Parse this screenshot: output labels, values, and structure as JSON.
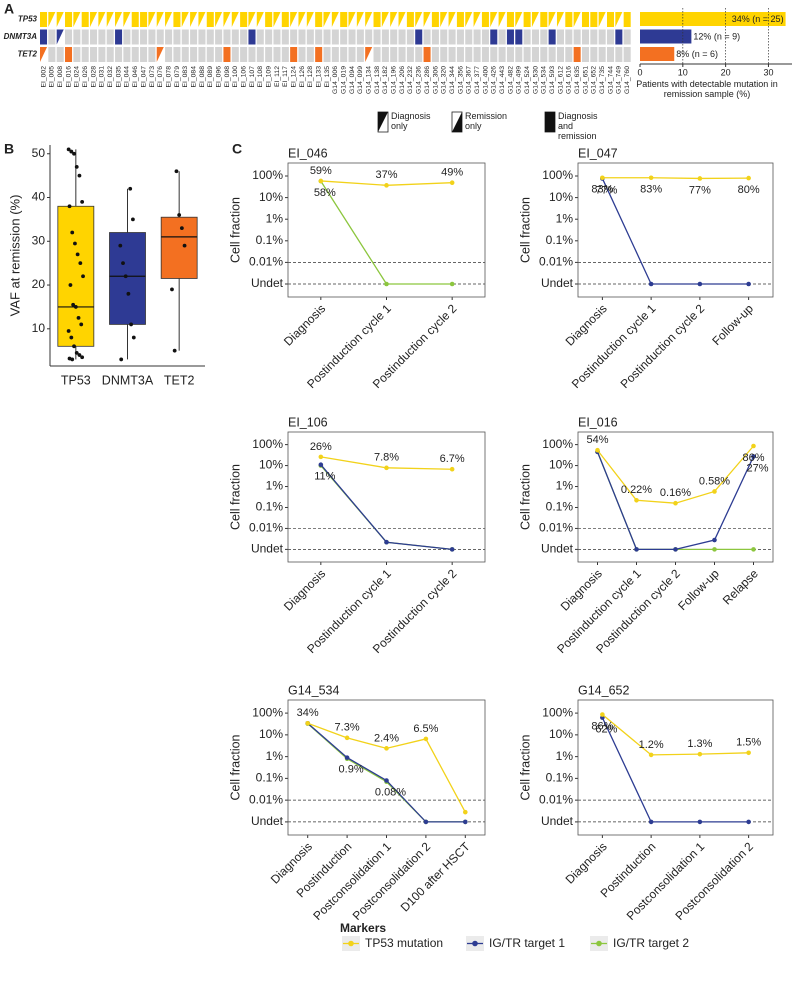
{
  "panel_labels": [
    "A",
    "B",
    "C"
  ],
  "chart_data": [
    {
      "type": "oncoprint",
      "samples": [
        "EI_002",
        "EI_005",
        "EI_008",
        "EI_016",
        "EI_024",
        "EI_026",
        "EI_028",
        "EI_031",
        "EI_032",
        "EI_035",
        "EI_044",
        "EI_046",
        "EI_047",
        "EI_073",
        "EI_076",
        "EI_078",
        "EI_079",
        "EI_083",
        "EI_084",
        "EI_088",
        "EI_089",
        "EI_096",
        "EI_098",
        "EI_100",
        "EI_106",
        "EI_107",
        "EI_108",
        "EI_109",
        "EI_112",
        "EI_117",
        "EI_124",
        "EI_126",
        "EI_128",
        "EI_133",
        "EI_135",
        "G14_006",
        "G14_019",
        "G14_094",
        "G14_099",
        "G14_134",
        "G14_138",
        "G14_182",
        "G14_196",
        "G14_206",
        "G14_232",
        "G14_236",
        "G14_286",
        "G14_306",
        "G14_320",
        "G14_344",
        "G14_356",
        "G14_367",
        "G14_377",
        "G14_400",
        "G14_426",
        "G14_443",
        "G14_482",
        "G14_499",
        "G14_524",
        "G14_530",
        "G14_534",
        "G14_593",
        "G14_612",
        "G14_616",
        "G14_635",
        "G14_651",
        "G14_652",
        "G14_735",
        "G14_744",
        "G14_749",
        "G14_760"
      ],
      "legend": [
        "Diagnosis only",
        "Remission only",
        "Diagnosis and remission"
      ],
      "genes": [
        {
          "name": "TP53",
          "color": "#ffd400",
          "status": [
            "Diagnosis and remission",
            "Diagnosis only",
            "Diagnosis only",
            "Diagnosis and remission",
            "Diagnosis only",
            "Diagnosis and remission",
            "Diagnosis only",
            "Diagnosis only",
            "Diagnosis only",
            "Diagnosis only",
            "Diagnosis only",
            "Diagnosis and remission",
            "Diagnosis and remission",
            "Diagnosis only",
            "Diagnosis only",
            "Diagnosis only",
            "Diagnosis and remission",
            "Diagnosis only",
            "Diagnosis only",
            "Diagnosis only",
            "Diagnosis and remission",
            "Diagnosis only",
            "Diagnosis only",
            "Diagnosis only",
            "Diagnosis and remission",
            "Diagnosis only",
            "Diagnosis only",
            "Diagnosis and remission",
            "Diagnosis only",
            "Diagnosis and remission",
            "Diagnosis only",
            "Diagnosis only",
            "Diagnosis only",
            "Diagnosis and remission",
            "Diagnosis only",
            "Diagnosis only",
            "Diagnosis and remission",
            "Diagnosis only",
            "Diagnosis only",
            "Diagnosis only",
            "Diagnosis and remission",
            "Diagnosis only",
            "Diagnosis only",
            "Diagnosis only",
            "Diagnosis and remission",
            "Diagnosis only",
            "Diagnosis only",
            "Diagnosis and remission",
            "Diagnosis only",
            "Diagnosis only",
            "Diagnosis and remission",
            "Diagnosis only",
            "Diagnosis only",
            "Diagnosis and remission",
            "Diagnosis only",
            "Diagnosis only",
            "Diagnosis and remission",
            "Diagnosis only",
            "Diagnosis and remission",
            "Diagnosis only",
            "Diagnosis and remission",
            "Diagnosis only",
            "Diagnosis only",
            "Diagnosis and remission",
            "Diagnosis only",
            "Diagnosis and remission",
            "Diagnosis and remission",
            "Diagnosis only",
            "Diagnosis and remission",
            "Diagnosis only",
            "Diagnosis and remission"
          ]
        },
        {
          "name": "DNMT3A",
          "color": "#2e3a94",
          "status": [
            "Diagnosis and remission",
            null,
            "Diagnosis only",
            null,
            null,
            null,
            null,
            null,
            null,
            "Diagnosis and remission",
            null,
            null,
            null,
            null,
            null,
            null,
            null,
            null,
            null,
            null,
            null,
            null,
            null,
            null,
            null,
            "Diagnosis and remission",
            null,
            null,
            null,
            null,
            null,
            null,
            null,
            null,
            null,
            null,
            null,
            null,
            null,
            null,
            null,
            null,
            null,
            null,
            null,
            "Diagnosis and remission",
            null,
            null,
            null,
            null,
            null,
            null,
            null,
            null,
            "Diagnosis and remission",
            null,
            "Diagnosis and remission",
            "Diagnosis and remission",
            null,
            null,
            null,
            "Diagnosis and remission",
            null,
            null,
            null,
            null,
            null,
            null,
            null,
            "Diagnosis and remission",
            null
          ]
        },
        {
          "name": "TET2",
          "color": "#f37021",
          "status": [
            "Diagnosis only",
            null,
            null,
            "Diagnosis and remission",
            null,
            null,
            null,
            null,
            null,
            null,
            null,
            null,
            null,
            null,
            "Diagnosis only",
            null,
            null,
            null,
            null,
            null,
            null,
            null,
            "Diagnosis and remission",
            null,
            null,
            null,
            null,
            null,
            null,
            null,
            "Diagnosis and remission",
            null,
            null,
            "Diagnosis and remission",
            null,
            null,
            null,
            null,
            null,
            "Diagnosis only",
            null,
            null,
            null,
            null,
            null,
            null,
            "Diagnosis and remission",
            null,
            null,
            null,
            null,
            null,
            null,
            null,
            null,
            null,
            null,
            null,
            null,
            null,
            null,
            null,
            null,
            null,
            "Diagnosis and remission",
            null,
            null,
            null,
            null,
            null,
            null
          ]
        }
      ]
    },
    {
      "type": "bar",
      "orientation": "horizontal",
      "values": [
        34,
        12,
        8
      ],
      "value_labels": [
        "34% (n = 25)",
        "12% (n = 9)",
        "8% (n = 6)"
      ],
      "xlabel": "Patients with detectable mutation in remission sample (%)",
      "xlim": [
        0,
        35.5
      ],
      "xticks": [
        0,
        10,
        20,
        30
      ],
      "grid": true
    },
    {
      "type": "box",
      "ylabel": "VAF at remission (%)",
      "categories": [
        "TP53",
        "DNMT3A",
        "TET2"
      ],
      "colors": [
        "#ffd400",
        "#2e3a94",
        "#f37021"
      ],
      "ylim": [
        1.5,
        52
      ],
      "yticks": [
        10,
        20,
        30,
        40,
        50
      ],
      "boxes": [
        {
          "whisker_low": 3,
          "q1": 6,
          "median": 15,
          "q3": 38,
          "whisker_high": 51
        },
        {
          "whisker_low": 3,
          "q1": 11,
          "median": 22,
          "q3": 32,
          "whisker_high": 42
        },
        {
          "whisker_low": 5,
          "q1": 21.5,
          "median": 31,
          "q3": 35.5,
          "whisker_high": 46
        }
      ],
      "points": [
        [
          51,
          50.5,
          50,
          47,
          45,
          39,
          38,
          32,
          29.5,
          27,
          25,
          22,
          20,
          15.5,
          15,
          12.5,
          11,
          9.5,
          8,
          6,
          4.5,
          4,
          3.5,
          3.2,
          3
        ],
        [
          42,
          35,
          29,
          25,
          22,
          18,
          11,
          8,
          3
        ],
        [
          46,
          36,
          33,
          29,
          19,
          5
        ]
      ]
    },
    {
      "type": "line",
      "title": "EI_046",
      "ylabel": "Cell fraction",
      "log_scale": true,
      "ylim": [
        0.00025,
        400
      ],
      "yticks": [
        {
          "value": 100,
          "label": "100%"
        },
        {
          "value": 10,
          "label": "10%"
        },
        {
          "value": 1,
          "label": "1%"
        },
        {
          "value": 0.1,
          "label": "0.1%"
        },
        {
          "value": 0.01,
          "label": "0.01%"
        },
        {
          "value": 0.001,
          "label": "Undet"
        }
      ],
      "reference_lines": [
        0.01,
        0.001
      ],
      "categories": [
        "Diagnosis",
        "Postinduction cycle 1",
        "Postinduction cycle 2"
      ],
      "series": [
        {
          "name": "TP53 mutation",
          "values": [
            59,
            37,
            49
          ],
          "value_labels": [
            "59%",
            "37%",
            "49%"
          ]
        },
        {
          "name": "IG/TR target 2",
          "values": [
            58,
            0.001,
            0.001
          ],
          "value_labels": [
            "58%",
            null,
            null
          ]
        }
      ]
    },
    {
      "type": "line",
      "title": "EI_047",
      "ylabel": "Cell fraction",
      "log_scale": true,
      "ylim": [
        0.00025,
        400
      ],
      "yticks": [
        {
          "value": 100,
          "label": "100%"
        },
        {
          "value": 10,
          "label": "10%"
        },
        {
          "value": 1,
          "label": "1%"
        },
        {
          "value": 0.1,
          "label": "0.1%"
        },
        {
          "value": 0.01,
          "label": "0.01%"
        },
        {
          "value": 0.001,
          "label": "Undet"
        }
      ],
      "reference_lines": [
        0.01,
        0.001
      ],
      "categories": [
        "Diagnosis",
        "Postinduction cycle 1",
        "Postinduction cycle 2",
        "Follow-up"
      ],
      "series": [
        {
          "name": "TP53 mutation",
          "values": [
            83,
            83,
            77,
            80
          ],
          "value_labels": [
            "83%",
            "83%",
            "77%",
            "80%"
          ]
        },
        {
          "name": "IG/TR target 1",
          "values": [
            77,
            0.001,
            0.001,
            0.001
          ],
          "value_labels": [
            "77%",
            null,
            null,
            null
          ]
        }
      ]
    },
    {
      "type": "line",
      "title": "EI_106",
      "ylabel": "Cell fraction",
      "log_scale": true,
      "ylim": [
        0.00025,
        400
      ],
      "yticks": [
        {
          "value": 100,
          "label": "100%"
        },
        {
          "value": 10,
          "label": "10%"
        },
        {
          "value": 1,
          "label": "1%"
        },
        {
          "value": 0.1,
          "label": "0.1%"
        },
        {
          "value": 0.01,
          "label": "0.01%"
        },
        {
          "value": 0.001,
          "label": "Undet"
        }
      ],
      "reference_lines": [
        0.01,
        0.001
      ],
      "categories": [
        "Diagnosis",
        "Postinduction cycle 1",
        "Postinduction cycle 2"
      ],
      "series": [
        {
          "name": "TP53 mutation",
          "values": [
            26,
            7.8,
            6.7
          ],
          "value_labels": [
            "26%",
            "7.8%",
            "6.7%"
          ]
        },
        {
          "name": "IG/TR target 1",
          "values": [
            11,
            0.0022,
            0.001
          ],
          "value_labels": [
            "11%",
            null,
            null
          ]
        },
        {
          "name": "IG/TR target 2",
          "values": [
            10,
            0.0022,
            0.001
          ]
        }
      ]
    },
    {
      "type": "line",
      "title": "EI_016",
      "ylabel": "Cell fraction",
      "log_scale": true,
      "ylim": [
        0.00025,
        400
      ],
      "yticks": [
        {
          "value": 100,
          "label": "100%"
        },
        {
          "value": 10,
          "label": "10%"
        },
        {
          "value": 1,
          "label": "1%"
        },
        {
          "value": 0.1,
          "label": "0.1%"
        },
        {
          "value": 0.01,
          "label": "0.01%"
        },
        {
          "value": 0.001,
          "label": "Undet"
        }
      ],
      "reference_lines": [
        0.01,
        0.001
      ],
      "categories": [
        "Diagnosis",
        "Postinduction cycle 1",
        "Postinduction cycle 2",
        "Follow-up",
        "Relapse"
      ],
      "series": [
        {
          "name": "TP53 mutation",
          "values": [
            54,
            0.22,
            0.16,
            0.58,
            86
          ],
          "value_labels": [
            "54%",
            "0.22%",
            "0.16%",
            "0.58%",
            "86%"
          ]
        },
        {
          "name": "IG/TR target 1",
          "values": [
            45,
            0.001,
            0.001,
            0.0028,
            27
          ],
          "value_labels": [
            null,
            null,
            null,
            null,
            "27%"
          ]
        },
        {
          "name": "IG/TR target 2",
          "values": [
            45,
            0.001,
            0.001,
            0.001,
            0.001
          ]
        }
      ]
    },
    {
      "type": "line",
      "title": "G14_534",
      "ylabel": "Cell fraction",
      "log_scale": true,
      "ylim": [
        0.00025,
        400
      ],
      "yticks": [
        {
          "value": 100,
          "label": "100%"
        },
        {
          "value": 10,
          "label": "10%"
        },
        {
          "value": 1,
          "label": "1%"
        },
        {
          "value": 0.1,
          "label": "0.1%"
        },
        {
          "value": 0.01,
          "label": "0.01%"
        },
        {
          "value": 0.001,
          "label": "Undet"
        }
      ],
      "reference_lines": [
        0.01,
        0.001
      ],
      "categories": [
        "Diagnosis",
        "Postinduction",
        "Postconsolidation 1",
        "Postconsolidation 2",
        "D100 after HSCT"
      ],
      "series": [
        {
          "name": "TP53 mutation",
          "values": [
            34,
            7.3,
            2.4,
            6.5,
            0.0028
          ],
          "value_labels": [
            "34%",
            "7.3%",
            "2.4%",
            "6.5%",
            null
          ]
        },
        {
          "name": "IG/TR target 1",
          "values": [
            34,
            0.9,
            0.08,
            0.001,
            0.001
          ],
          "value_labels": [
            null,
            "0.9%",
            "0.08%",
            null,
            null
          ]
        },
        {
          "name": "IG/TR target 2",
          "values": [
            33,
            0.8,
            0.07,
            0.001,
            0.001
          ]
        }
      ]
    },
    {
      "type": "line",
      "title": "G14_652",
      "ylabel": "Cell fraction",
      "log_scale": true,
      "ylim": [
        0.00025,
        400
      ],
      "yticks": [
        {
          "value": 100,
          "label": "100%"
        },
        {
          "value": 10,
          "label": "10%"
        },
        {
          "value": 1,
          "label": "1%"
        },
        {
          "value": 0.1,
          "label": "0.1%"
        },
        {
          "value": 0.01,
          "label": "0.01%"
        },
        {
          "value": 0.001,
          "label": "Undet"
        }
      ],
      "reference_lines": [
        0.01,
        0.001
      ],
      "categories": [
        "Diagnosis",
        "Postinduction",
        "Postconsolidation 1",
        "Postconsolidation 2"
      ],
      "series": [
        {
          "name": "TP53 mutation",
          "values": [
            86,
            1.2,
            1.3,
            1.5
          ],
          "value_labels": [
            "86%",
            "1.2%",
            "1.3%",
            "1.5%"
          ]
        },
        {
          "name": "IG/TR target 1",
          "values": [
            62,
            0.001,
            0.001,
            0.001
          ],
          "value_labels": [
            "62%",
            null,
            null,
            null
          ]
        }
      ]
    }
  ],
  "legend": {
    "title": "Markers",
    "items": [
      {
        "name": "TP53 mutation",
        "color": "#f2d21a"
      },
      {
        "name": "IG/TR target 1",
        "color": "#2d3c92"
      },
      {
        "name": "IG/TR target 2",
        "color": "#8cc63e"
      }
    ]
  }
}
